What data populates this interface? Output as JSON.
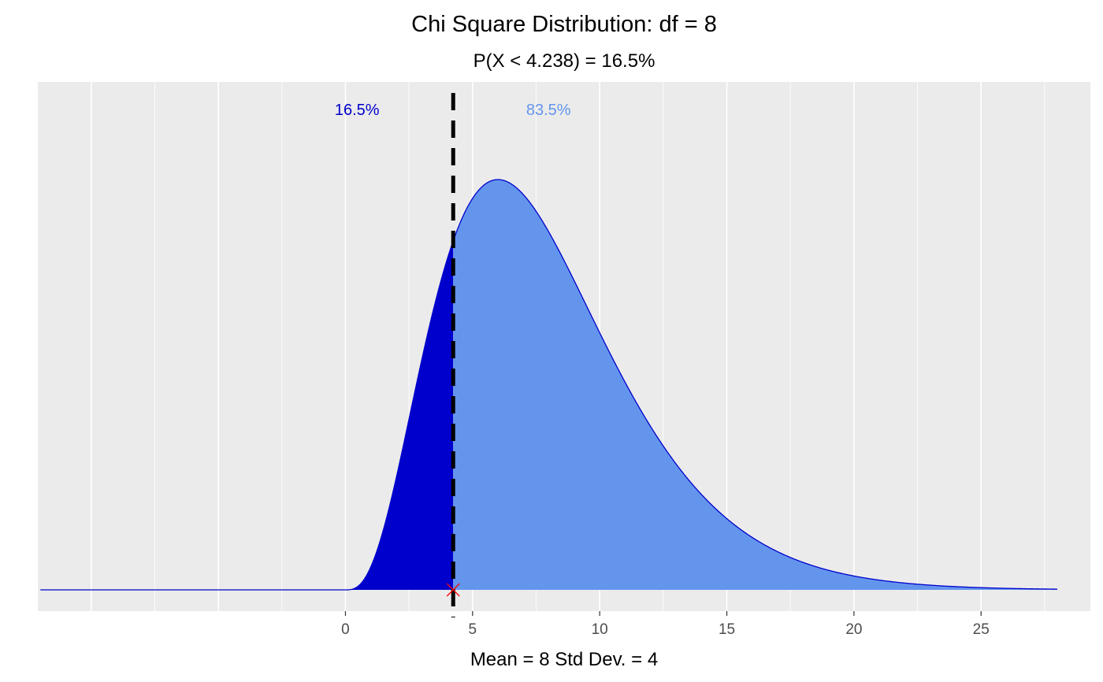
{
  "chart_data": {
    "type": "area",
    "title": "Chi Square Distribution: df = 8",
    "subtitle": "P(X < 4.238) = 16.5%",
    "xlabel": "Mean = 8  Std Dev. = 4",
    "ylabel": "",
    "df": 8,
    "critical_value": 4.238,
    "xlim": [
      -12.1,
      29.3
    ],
    "curve_range": [
      -12,
      28
    ],
    "x_ticks": [
      0,
      5,
      10,
      15,
      20,
      25
    ],
    "x_tick_labels": [
      "0",
      "5",
      "10",
      "15",
      "20",
      "25"
    ],
    "grid": true,
    "regions": [
      {
        "label": "16.5%",
        "range": [
          0,
          4.238
        ],
        "color": "#0000CD"
      },
      {
        "label": "83.5%",
        "range": [
          4.238,
          28
        ],
        "color": "#6495ED"
      }
    ],
    "line_color": "#0000CD",
    "vline_color": "#000000",
    "marker_color": "#FF0000",
    "panel_color": "#EBEBEB"
  }
}
